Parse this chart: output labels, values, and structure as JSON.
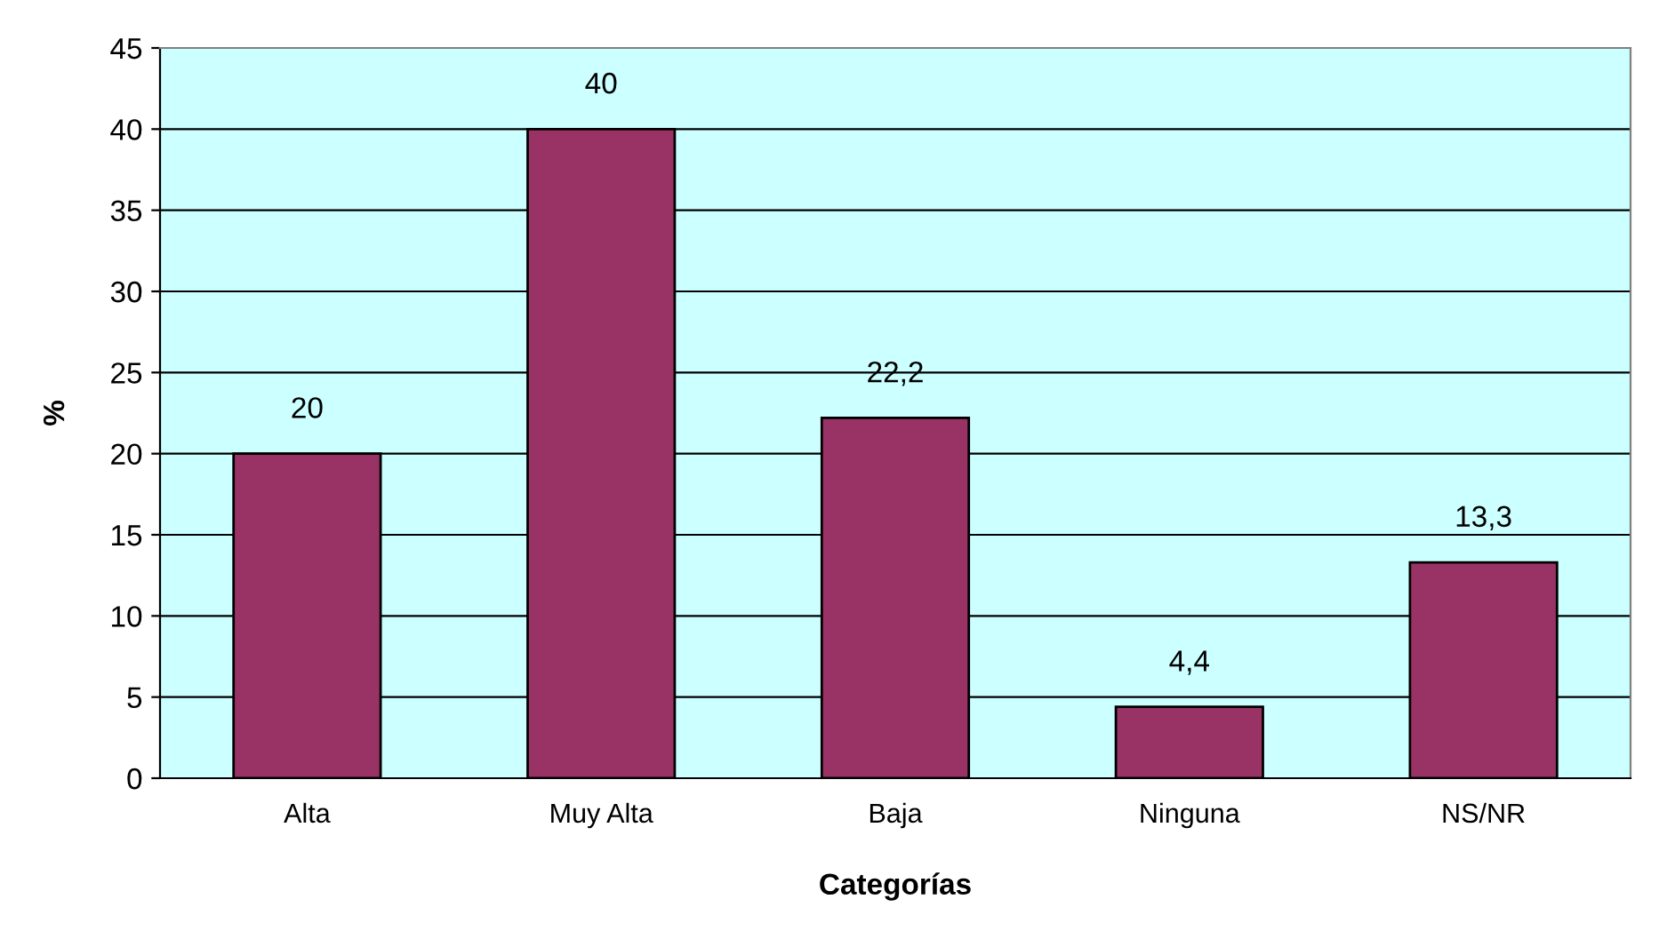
{
  "chart_data": {
    "type": "bar",
    "xlabel": "Categorías",
    "ylabel": "%",
    "categories": [
      "Alta",
      "Muy Alta",
      "Baja",
      "Ninguna",
      "NS/NR"
    ],
    "values": [
      20,
      40,
      22.2,
      4.4,
      13.3
    ],
    "value_labels": [
      "20",
      "40",
      "22,2",
      "4,4",
      "13,3"
    ],
    "color": "#993366",
    "ylim": [
      0,
      45
    ],
    "yticks": [
      0,
      5,
      10,
      15,
      20,
      25,
      30,
      35,
      40,
      45
    ],
    "grid": "y",
    "legend": false
  }
}
